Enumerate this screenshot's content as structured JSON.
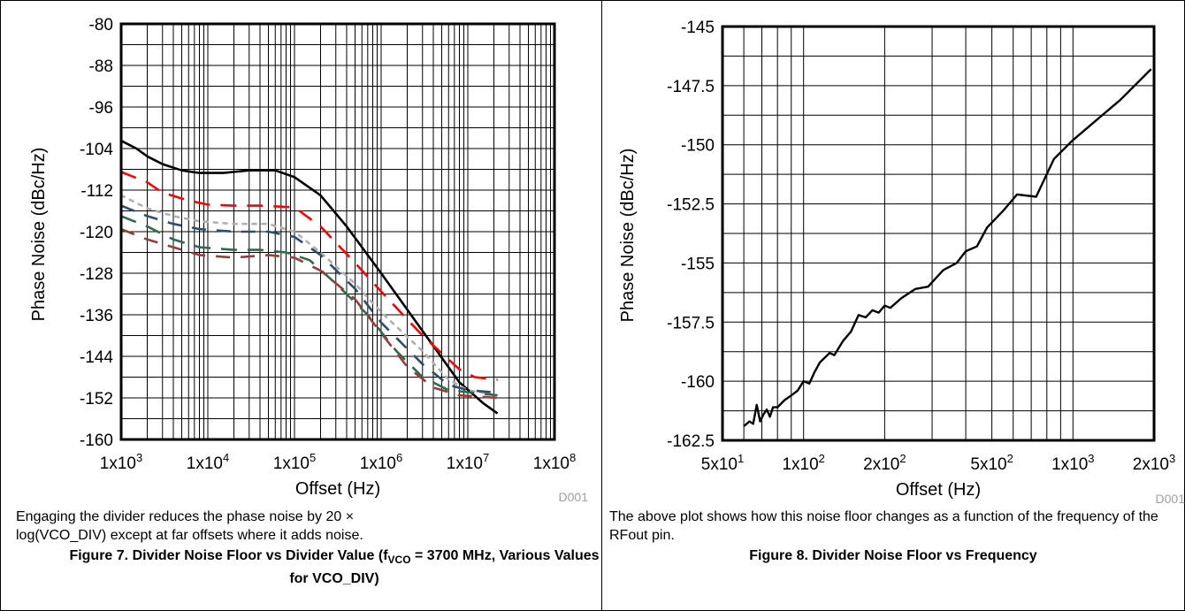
{
  "figures": [
    {
      "code": "D001",
      "caption": "Engaging the divider reduces the phase noise by 20 × log(VCO_DIV) except at far offsets where it adds noise.",
      "title_main": "Figure 7. Divider Noise Floor vs Divider Value (f",
      "title_sub": "VCO",
      "title_rest": " = 3700 MHz, Various Values for VCO_DIV)"
    },
    {
      "code": "D001",
      "caption": "The above plot shows how this noise floor changes as a function of the frequency of the RFout pin.",
      "title_main": "Figure 8. Divider Noise Floor vs Frequency"
    }
  ],
  "chart_data": [
    {
      "type": "line",
      "title": "",
      "xlabel": "Offset (Hz)",
      "ylabel": "Phase Noise (dBc/Hz)",
      "xscale": "log",
      "xlim": [
        1000,
        100000000
      ],
      "ylim": [
        -160,
        -80
      ],
      "xticks": [
        {
          "value": 1000,
          "base": "1x10",
          "exp": "3"
        },
        {
          "value": 10000,
          "base": "1x10",
          "exp": "4"
        },
        {
          "value": 100000,
          "base": "1x10",
          "exp": "5"
        },
        {
          "value": 1000000,
          "base": "1x10",
          "exp": "6"
        },
        {
          "value": 10000000,
          "base": "1x10",
          "exp": "7"
        },
        {
          "value": 100000000,
          "base": "1x10",
          "exp": "8"
        }
      ],
      "yticks": [
        -80,
        -88,
        -96,
        -104,
        -112,
        -120,
        -128,
        -136,
        -144,
        -152,
        -160
      ],
      "grid": true,
      "series": [
        {
          "color": "#000000",
          "dash": "",
          "points": [
            [
              1000,
              -102.5
            ],
            [
              1500,
              -104
            ],
            [
              2000,
              -105.5
            ],
            [
              3000,
              -107
            ],
            [
              5000,
              -108.2
            ],
            [
              8000,
              -108.7
            ],
            [
              15000,
              -108.7
            ],
            [
              30000,
              -108.2
            ],
            [
              60000,
              -108.2
            ],
            [
              100000,
              -109.5
            ],
            [
              200000,
              -113
            ],
            [
              400000,
              -119
            ],
            [
              1000000,
              -128
            ],
            [
              2000000,
              -135
            ],
            [
              4000000,
              -142
            ],
            [
              8000000,
              -149
            ],
            [
              15000000,
              -153
            ],
            [
              22000000,
              -155
            ]
          ]
        },
        {
          "color": "#ff0000",
          "dash": "18 12",
          "points": [
            [
              1000,
              -108.5
            ],
            [
              2000,
              -110.5
            ],
            [
              3000,
              -112.5
            ],
            [
              6000,
              -114
            ],
            [
              10000,
              -114.8
            ],
            [
              20000,
              -115
            ],
            [
              40000,
              -115
            ],
            [
              100000,
              -115.3
            ],
            [
              200000,
              -119
            ],
            [
              500000,
              -126
            ],
            [
              1000000,
              -131.5
            ],
            [
              3000000,
              -140
            ],
            [
              8000000,
              -146.5
            ],
            [
              12000000,
              -148
            ],
            [
              22000000,
              -148.5
            ]
          ]
        },
        {
          "color": "#b0b0b0",
          "dash": "4 7",
          "points": [
            [
              1000,
              -113
            ],
            [
              2000,
              -115.5
            ],
            [
              4000,
              -117
            ],
            [
              8000,
              -118
            ],
            [
              20000,
              -118.5
            ],
            [
              50000,
              -118.5
            ],
            [
              100000,
              -120
            ],
            [
              200000,
              -124
            ],
            [
              500000,
              -130
            ],
            [
              1000000,
              -135.5
            ],
            [
              3000000,
              -143
            ],
            [
              6000000,
              -148.5
            ],
            [
              10000000,
              -150.5
            ],
            [
              22000000,
              -151.5
            ]
          ]
        },
        {
          "color": "#2c4f6e",
          "dash": "16 12",
          "points": [
            [
              1000,
              -115
            ],
            [
              2000,
              -117
            ],
            [
              4000,
              -118.5
            ],
            [
              8000,
              -119.5
            ],
            [
              20000,
              -120
            ],
            [
              50000,
              -120
            ],
            [
              100000,
              -121
            ],
            [
              200000,
              -124.5
            ],
            [
              500000,
              -131
            ],
            [
              1000000,
              -137.5
            ],
            [
              3000000,
              -145.5
            ],
            [
              6000000,
              -149.5
            ],
            [
              10000000,
              -150.5
            ],
            [
              22000000,
              -151
            ]
          ]
        },
        {
          "color": "#2e6b4a",
          "dash": "18 12",
          "points": [
            [
              1000,
              -117
            ],
            [
              2000,
              -119
            ],
            [
              4000,
              -121.5
            ],
            [
              8000,
              -123
            ],
            [
              20000,
              -123.5
            ],
            [
              40000,
              -123.5
            ],
            [
              80000,
              -124
            ],
            [
              150000,
              -125.5
            ],
            [
              300000,
              -130
            ],
            [
              700000,
              -136
            ],
            [
              1500000,
              -143
            ],
            [
              3000000,
              -148
            ],
            [
              6000000,
              -150.5
            ],
            [
              22000000,
              -151.5
            ]
          ]
        },
        {
          "color": "#9b3b3b",
          "dash": "16 12",
          "points": [
            [
              1000,
              -119.5
            ],
            [
              2000,
              -121.5
            ],
            [
              4000,
              -123
            ],
            [
              8000,
              -124.5
            ],
            [
              20000,
              -125
            ],
            [
              50000,
              -124.5
            ],
            [
              100000,
              -125
            ],
            [
              200000,
              -127.5
            ],
            [
              500000,
              -133
            ],
            [
              1000000,
              -139.5
            ],
            [
              2000000,
              -146
            ],
            [
              4000000,
              -150
            ],
            [
              8000000,
              -151.5
            ],
            [
              22000000,
              -152
            ]
          ]
        }
      ]
    },
    {
      "type": "line",
      "title": "",
      "xlabel": "Offset (Hz)",
      "ylabel": "Phase Noise (dBc/Hz)",
      "xscale": "log",
      "xlim": [
        50,
        2000
      ],
      "ylim": [
        -162.5,
        -145
      ],
      "xticks": [
        {
          "value": 50,
          "base": "5x10",
          "exp": "1"
        },
        {
          "value": 100,
          "base": "1x10",
          "exp": "2"
        },
        {
          "value": 200,
          "base": "2x10",
          "exp": "2"
        },
        {
          "value": 500,
          "base": "5x10",
          "exp": "2"
        },
        {
          "value": 1000,
          "base": "1x10",
          "exp": "3"
        },
        {
          "value": 2000,
          "base": "2x10",
          "exp": "3"
        }
      ],
      "yticks": [
        -145,
        -147.5,
        -150,
        -152.5,
        -155,
        -157.5,
        -160,
        -162.5
      ],
      "grid": true,
      "series": [
        {
          "color": "#000000",
          "dash": "",
          "points": [
            [
              60,
              -161.9
            ],
            [
              63,
              -161.7
            ],
            [
              65,
              -161.8
            ],
            [
              67,
              -161
            ],
            [
              69,
              -161.7
            ],
            [
              71,
              -161.4
            ],
            [
              73,
              -161.2
            ],
            [
              75,
              -161.5
            ],
            [
              77,
              -161.1
            ],
            [
              80,
              -161.1
            ],
            [
              85,
              -160.8
            ],
            [
              90,
              -160.6
            ],
            [
              95,
              -160.4
            ],
            [
              100,
              -160
            ],
            [
              105,
              -160.1
            ],
            [
              110,
              -159.6
            ],
            [
              115,
              -159.2
            ],
            [
              120,
              -159
            ],
            [
              125,
              -158.8
            ],
            [
              130,
              -158.9
            ],
            [
              140,
              -158.3
            ],
            [
              150,
              -157.9
            ],
            [
              160,
              -157.2
            ],
            [
              170,
              -157.3
            ],
            [
              180,
              -157
            ],
            [
              190,
              -157.1
            ],
            [
              200,
              -156.8
            ],
            [
              210,
              -156.9
            ],
            [
              230,
              -156.5
            ],
            [
              260,
              -156.1
            ],
            [
              290,
              -156
            ],
            [
              330,
              -155.3
            ],
            [
              370,
              -155
            ],
            [
              400,
              -154.5
            ],
            [
              440,
              -154.3
            ],
            [
              480,
              -153.5
            ],
            [
              550,
              -152.8
            ],
            [
              620,
              -152.1
            ],
            [
              730,
              -152.2
            ],
            [
              850,
              -150.6
            ],
            [
              1000,
              -149.8
            ],
            [
              1500,
              -148.1
            ],
            [
              1950,
              -146.8
            ]
          ]
        }
      ]
    }
  ]
}
